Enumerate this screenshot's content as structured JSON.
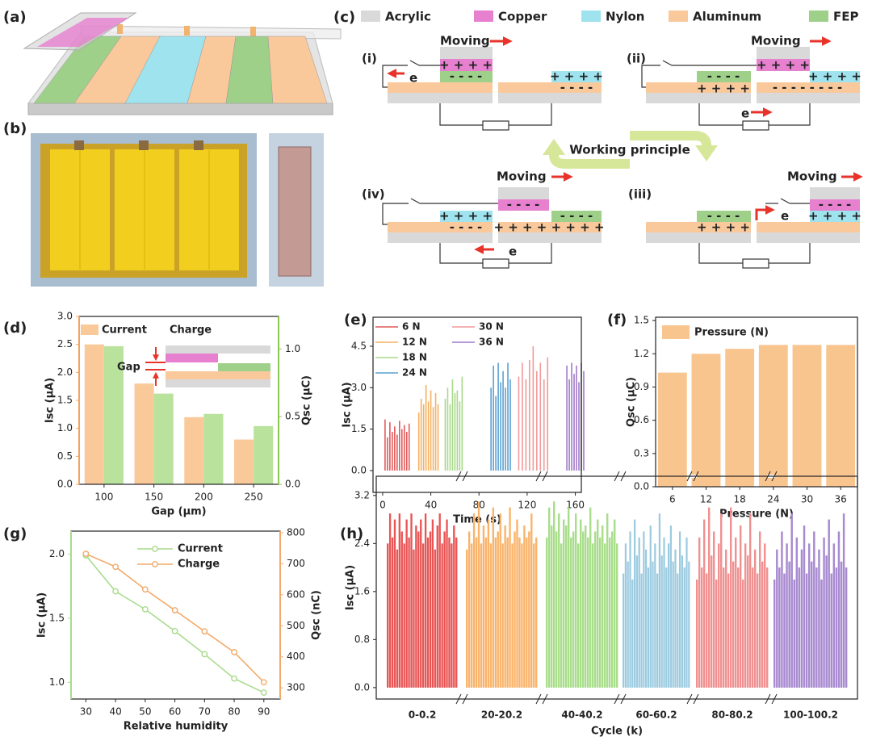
{
  "figure": {
    "panel_labels": [
      "(a)",
      "(b)",
      "(c)",
      "(d)",
      "(e)",
      "(f)",
      "(g)",
      "(h)"
    ],
    "legend": [
      {
        "label": "Acrylic",
        "color": "#d9d9d9"
      },
      {
        "label": "Copper",
        "color": "#e680cf"
      },
      {
        "label": "Nylon",
        "color": "#9fe3ef"
      },
      {
        "label": "Aluminum",
        "color": "#f9c99c"
      },
      {
        "label": "FEP",
        "color": "#9fd08a"
      }
    ],
    "center_label": "Working principle",
    "stages": [
      {
        "label": "(i)",
        "moving": "Moving",
        "electron": "e",
        "charges": [
          "+ + + +",
          "- - - -",
          "+ + + +",
          "- - - -"
        ]
      },
      {
        "label": "(ii)",
        "moving": "Moving",
        "electron": "e",
        "charges": [
          "+ + + +",
          "- - - -",
          "+ + + +",
          "- - - - - - - -",
          "+ + + +"
        ]
      },
      {
        "label": "(iii)",
        "moving": "Moving",
        "electron": "e",
        "charges": [
          "- - - -",
          "+ + + +",
          "- - - -",
          "+ + + +"
        ]
      },
      {
        "label": "(iv)",
        "moving": "Moving",
        "electron": "e",
        "charges": [
          "- - - -",
          "- - - -",
          "+ + + +",
          "- - - -",
          "+ + + + + + + +"
        ]
      }
    ]
  },
  "chart_data": [
    {
      "type": "bar",
      "xlabel": "Gap (μm)",
      "ylabel": "Isc (μA)",
      "y2label": "Qsc (μC)",
      "y_color": "#f3a35c",
      "y2_color": "#8cc850",
      "legend": "upper left",
      "annotation": "Gap",
      "categories": [
        "100",
        "150",
        "200",
        "250"
      ],
      "series": [
        {
          "name": "Current",
          "color": "#f9c99a",
          "values": [
            2.5,
            1.8,
            1.2,
            0.8
          ]
        },
        {
          "name": "Charge",
          "color": "#b9e29d",
          "axis": "y2",
          "values": [
            1.02,
            0.67,
            0.52,
            0.43
          ]
        }
      ],
      "ylim": [
        0,
        3.0
      ],
      "yticks": [
        {
          "value": 0,
          "label": "0.0"
        },
        0.5,
        {
          "value": 1,
          "label": "1.0"
        },
        1.5,
        {
          "value": 2,
          "label": "2.0"
        },
        2.5,
        {
          "value": 3,
          "label": "3.0"
        }
      ],
      "y2lim": [
        0,
        1.24
      ],
      "y2ticks": [
        {
          "value": 0,
          "label": "0.0"
        },
        0.5,
        {
          "value": 1,
          "label": "1.0"
        }
      ]
    },
    {
      "type": "stem",
      "xlabel": "Time (s)",
      "ylabel": "Isc (μA)",
      "legend": "upper left",
      "xlim": [
        -8,
        165
      ],
      "xticks": [
        0,
        40,
        80,
        120,
        160
      ],
      "ylim": [
        -0.79,
        5.55
      ],
      "yticks": [
        {
          "value": 0,
          "label": "0.0"
        },
        1.5,
        {
          "value": 3,
          "label": "3.0"
        },
        4.5
      ],
      "series": [
        {
          "name": "6 N",
          "color": "#e05a5a",
          "x": [
            2,
            4,
            6,
            8,
            10,
            12,
            14,
            16,
            18,
            20,
            22
          ],
          "values": [
            1.85,
            1.2,
            1.75,
            1.4,
            1.6,
            1.3,
            1.8,
            1.5,
            1.65,
            1.4,
            1.7
          ]
        },
        {
          "name": "12 N",
          "color": "#f5b060",
          "x": [
            30,
            32,
            34,
            36,
            38,
            40,
            42,
            44,
            46
          ],
          "values": [
            2.1,
            2.6,
            2.4,
            3.1,
            2.5,
            2.9,
            2.3,
            2.8,
            2.4
          ]
        },
        {
          "name": "18 N",
          "color": "#a8d88a",
          "x": [
            52,
            54,
            56,
            58,
            60,
            62,
            64,
            66
          ],
          "values": [
            2.6,
            3.0,
            2.4,
            3.3,
            2.8,
            2.9,
            2.5,
            3.4
          ]
        },
        {
          "name": "24 N",
          "color": "#5aa0d0",
          "x": [
            90,
            92,
            94,
            96,
            98,
            100,
            102,
            104,
            106
          ],
          "values": [
            3.0,
            3.8,
            2.7,
            3.9,
            3.2,
            3.6,
            3.0,
            3.9,
            3.3
          ]
        },
        {
          "name": "30 N",
          "color": "#f09a9a",
          "x": [
            113,
            116,
            119,
            122,
            125,
            128,
            131,
            134,
            137
          ],
          "values": [
            3.4,
            3.9,
            3.3,
            4.0,
            4.5,
            3.6,
            3.9,
            3.3,
            4.1
          ]
        },
        {
          "name": "36 N",
          "color": "#a07ac8",
          "x": [
            153,
            155,
            157,
            159,
            161,
            163,
            165,
            167
          ],
          "values": [
            3.8,
            3.3,
            3.9,
            3.5,
            3.8,
            3.2,
            3.9,
            3.6
          ]
        }
      ]
    },
    {
      "type": "bar",
      "xlabel": "Pressure (N)",
      "ylabel": "Qsc (μC)",
      "legend": "upper left",
      "categories": [
        "6",
        "12",
        "18",
        "24",
        "30",
        "36"
      ],
      "series": [
        {
          "name": "Pressure (N)",
          "color": "#f9c58f",
          "values": [
            1.03,
            1.2,
            1.245,
            1.28,
            1.28,
            1.28
          ]
        }
      ],
      "ylim": [
        0,
        1.53
      ],
      "yticks": [
        {
          "value": 0,
          "label": "0.0"
        },
        0.3,
        0.6,
        0.9,
        1.2,
        1.5
      ]
    },
    {
      "type": "line",
      "xlabel": "Relative humidity",
      "ylabel": "Isc (μA)",
      "y2label": "Qsc (nC)",
      "y_color": "#a8dc8c",
      "y2_color": "#f2aa6a",
      "legend": "upper right",
      "x": [
        30,
        40,
        50,
        60,
        70,
        80,
        90
      ],
      "xlim": [
        25,
        95.5
      ],
      "xticks": [
        30,
        40,
        50,
        60,
        70,
        80,
        90
      ],
      "ylim": [
        0.87,
        2.18
      ],
      "yticks": [
        {
          "value": 1,
          "label": "1.0"
        },
        1.5,
        {
          "value": 2,
          "label": "2.0"
        }
      ],
      "y2lim": [
        264,
        805
      ],
      "y2ticks": [
        300,
        400,
        500,
        600,
        700,
        800
      ],
      "series": [
        {
          "name": "Current",
          "color": "#a8dc8c",
          "values": [
            1.99,
            1.71,
            1.57,
            1.4,
            1.22,
            1.03,
            0.92
          ]
        },
        {
          "name": "Charge",
          "color": "#f2aa6a",
          "axis": "y2",
          "values": [
            732,
            690,
            617,
            550,
            482,
            415,
            318
          ]
        }
      ]
    },
    {
      "type": "bar",
      "xlabel": "Cycle (k)",
      "ylabel": "Isc (μA)",
      "ylim": [
        -0.19,
        3.52
      ],
      "yticks": [
        {
          "value": 0,
          "label": "0.0"
        },
        0.8,
        1.6,
        2.4,
        3.2
      ],
      "segments": [
        {
          "label": "0-0.2",
          "color": "#e85555",
          "values": [
            2.4,
            2.9,
            2.5,
            2.8,
            2.3,
            2.9,
            2.6,
            2.4,
            2.8,
            2.5,
            2.9,
            2.3,
            2.7,
            2.6,
            2.8,
            2.4,
            2.9,
            2.5,
            2.6,
            2.8,
            2.3,
            2.7,
            2.9,
            2.4,
            2.6,
            2.8,
            2.5,
            2.4,
            2.7,
            2.5
          ]
        },
        {
          "label": "20-20.2",
          "color": "#f9b36a",
          "values": [
            2.3,
            2.6,
            2.4,
            2.9,
            2.5,
            3.1,
            2.4,
            2.7,
            2.5,
            2.8,
            2.4,
            3.0,
            2.5,
            2.6,
            2.9,
            2.4,
            2.7,
            2.5,
            3.0,
            2.4,
            2.6,
            2.8,
            2.5,
            2.4,
            2.7,
            2.5,
            2.6,
            2.9,
            2.4,
            2.5
          ]
        },
        {
          "label": "40-40.2",
          "color": "#a8dd8a",
          "values": [
            2.5,
            3.0,
            2.7,
            3.1,
            2.6,
            2.9,
            2.4,
            2.8,
            2.7,
            3.0,
            2.5,
            2.6,
            2.9,
            2.4,
            2.8,
            2.6,
            2.7,
            2.5,
            3.0,
            2.4,
            2.6,
            2.8,
            2.5,
            2.7,
            2.4,
            2.9,
            2.5,
            2.6,
            2.8,
            2.4
          ]
        },
        {
          "label": "60-60.2",
          "color": "#9ccbe0",
          "values": [
            1.9,
            2.4,
            2.1,
            2.6,
            1.8,
            2.8,
            2.2,
            2.5,
            1.9,
            2.6,
            2.3,
            2.0,
            2.7,
            2.1,
            2.4,
            1.9,
            2.9,
            2.2,
            2.5,
            2.0,
            2.4,
            2.7,
            2.1,
            2.3,
            1.9,
            2.6,
            2.2,
            2.0,
            2.5,
            2.1
          ]
        },
        {
          "label": "80-80.2",
          "color": "#f09090",
          "values": [
            1.8,
            2.5,
            2.0,
            2.8,
            1.9,
            3.0,
            2.2,
            2.6,
            1.8,
            2.4,
            2.9,
            2.0,
            2.3,
            1.9,
            3.0,
            2.1,
            2.5,
            2.0,
            2.7,
            1.8,
            2.4,
            2.2,
            2.9,
            2.0,
            2.3,
            1.9,
            2.6,
            2.1,
            2.4,
            2.0
          ]
        },
        {
          "label": "100-100.2",
          "color": "#a88ad0",
          "values": [
            1.8,
            2.3,
            2.0,
            2.6,
            1.9,
            2.4,
            2.1,
            2.9,
            1.8,
            2.5,
            2.0,
            2.3,
            2.7,
            1.9,
            2.4,
            2.1,
            2.6,
            2.0,
            2.3,
            1.8,
            2.5,
            2.2,
            2.8,
            1.9,
            2.4,
            2.0,
            2.6,
            2.1,
            2.9,
            2.0
          ]
        }
      ]
    }
  ]
}
